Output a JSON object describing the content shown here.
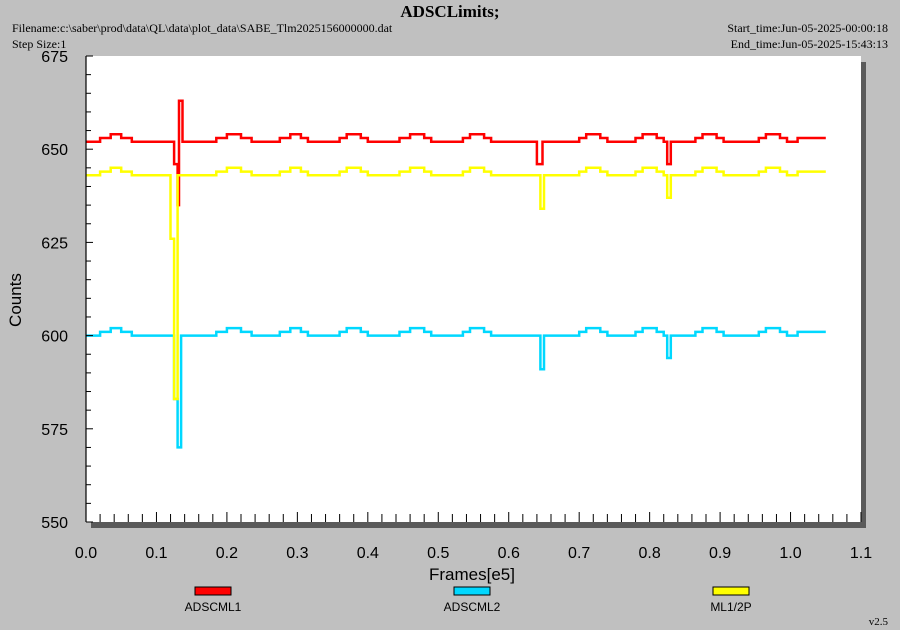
{
  "header": {
    "title": "ADSCLimits;",
    "filename": "Filename:c:\\saber\\prod\\data\\QL\\data\\plot_data\\SABE_Tlm2025156000000.dat",
    "step_size": "Step Size:1",
    "start_time": "Start_time:Jun-05-2025-00:00:18",
    "end_time": "End_time:Jun-05-2025-15:43:13"
  },
  "version": "v2.5",
  "chart_data": {
    "type": "line",
    "title": "ADSCLimits;",
    "xlabel": "Frames[e5]",
    "ylabel": "Counts",
    "xlim": [
      0.0,
      1.1
    ],
    "ylim": [
      550,
      675
    ],
    "x_ticks": [
      "0.0",
      "0.1",
      "0.2",
      "0.3",
      "0.4",
      "0.5",
      "0.6",
      "0.7",
      "0.8",
      "0.9",
      "1.0",
      "1.1"
    ],
    "y_ticks": [
      "550",
      "575",
      "600",
      "625",
      "650",
      "675"
    ],
    "grid": false,
    "legend_position": "bottom",
    "series": [
      {
        "name": "ADSCML1",
        "color": "#ff0000",
        "points": [
          [
            0.0,
            652
          ],
          [
            0.02,
            652
          ],
          [
            0.02,
            653
          ],
          [
            0.035,
            653
          ],
          [
            0.035,
            654
          ],
          [
            0.05,
            654
          ],
          [
            0.05,
            653
          ],
          [
            0.065,
            653
          ],
          [
            0.065,
            652
          ],
          [
            0.125,
            652
          ],
          [
            0.125,
            646
          ],
          [
            0.13,
            646
          ],
          [
            0.13,
            635
          ],
          [
            0.132,
            635
          ],
          [
            0.132,
            663
          ],
          [
            0.137,
            663
          ],
          [
            0.137,
            652
          ],
          [
            0.185,
            652
          ],
          [
            0.185,
            653
          ],
          [
            0.2,
            653
          ],
          [
            0.2,
            654
          ],
          [
            0.22,
            654
          ],
          [
            0.22,
            653
          ],
          [
            0.235,
            653
          ],
          [
            0.235,
            652
          ],
          [
            0.275,
            652
          ],
          [
            0.275,
            653
          ],
          [
            0.29,
            653
          ],
          [
            0.29,
            654
          ],
          [
            0.305,
            654
          ],
          [
            0.305,
            653
          ],
          [
            0.315,
            653
          ],
          [
            0.315,
            652
          ],
          [
            0.36,
            652
          ],
          [
            0.36,
            653
          ],
          [
            0.37,
            653
          ],
          [
            0.37,
            654
          ],
          [
            0.39,
            654
          ],
          [
            0.39,
            653
          ],
          [
            0.4,
            653
          ],
          [
            0.4,
            652
          ],
          [
            0.445,
            652
          ],
          [
            0.445,
            653
          ],
          [
            0.46,
            653
          ],
          [
            0.46,
            654
          ],
          [
            0.48,
            654
          ],
          [
            0.48,
            653
          ],
          [
            0.49,
            653
          ],
          [
            0.49,
            652
          ],
          [
            0.535,
            652
          ],
          [
            0.535,
            653
          ],
          [
            0.545,
            653
          ],
          [
            0.545,
            654
          ],
          [
            0.565,
            654
          ],
          [
            0.565,
            653
          ],
          [
            0.575,
            653
          ],
          [
            0.575,
            652
          ],
          [
            0.64,
            652
          ],
          [
            0.64,
            646
          ],
          [
            0.648,
            646
          ],
          [
            0.648,
            652
          ],
          [
            0.7,
            652
          ],
          [
            0.7,
            653
          ],
          [
            0.71,
            653
          ],
          [
            0.71,
            654
          ],
          [
            0.73,
            654
          ],
          [
            0.73,
            653
          ],
          [
            0.74,
            653
          ],
          [
            0.74,
            652
          ],
          [
            0.78,
            652
          ],
          [
            0.78,
            653
          ],
          [
            0.79,
            653
          ],
          [
            0.79,
            654
          ],
          [
            0.81,
            654
          ],
          [
            0.81,
            653
          ],
          [
            0.82,
            653
          ],
          [
            0.82,
            652
          ],
          [
            0.825,
            652
          ],
          [
            0.825,
            646
          ],
          [
            0.83,
            646
          ],
          [
            0.83,
            652
          ],
          [
            0.865,
            652
          ],
          [
            0.865,
            653
          ],
          [
            0.875,
            653
          ],
          [
            0.875,
            654
          ],
          [
            0.895,
            654
          ],
          [
            0.895,
            653
          ],
          [
            0.905,
            653
          ],
          [
            0.905,
            652
          ],
          [
            0.955,
            652
          ],
          [
            0.955,
            653
          ],
          [
            0.965,
            653
          ],
          [
            0.965,
            654
          ],
          [
            0.985,
            654
          ],
          [
            0.985,
            653
          ],
          [
            0.995,
            653
          ],
          [
            0.995,
            652
          ],
          [
            1.01,
            652
          ],
          [
            1.01,
            653
          ],
          [
            1.05,
            653
          ]
        ]
      },
      {
        "name": "ADSCML2",
        "color": "#00d8ff",
        "points": [
          [
            0.0,
            600
          ],
          [
            0.02,
            600
          ],
          [
            0.02,
            601
          ],
          [
            0.035,
            601
          ],
          [
            0.035,
            602
          ],
          [
            0.05,
            602
          ],
          [
            0.05,
            601
          ],
          [
            0.065,
            601
          ],
          [
            0.065,
            600
          ],
          [
            0.125,
            600
          ],
          [
            0.125,
            583
          ],
          [
            0.13,
            583
          ],
          [
            0.13,
            570
          ],
          [
            0.135,
            570
          ],
          [
            0.135,
            600
          ],
          [
            0.185,
            600
          ],
          [
            0.185,
            601
          ],
          [
            0.2,
            601
          ],
          [
            0.2,
            602
          ],
          [
            0.22,
            602
          ],
          [
            0.22,
            601
          ],
          [
            0.235,
            601
          ],
          [
            0.235,
            600
          ],
          [
            0.275,
            600
          ],
          [
            0.275,
            601
          ],
          [
            0.29,
            601
          ],
          [
            0.29,
            602
          ],
          [
            0.305,
            602
          ],
          [
            0.305,
            601
          ],
          [
            0.315,
            601
          ],
          [
            0.315,
            600
          ],
          [
            0.36,
            600
          ],
          [
            0.36,
            601
          ],
          [
            0.37,
            601
          ],
          [
            0.37,
            602
          ],
          [
            0.39,
            602
          ],
          [
            0.39,
            601
          ],
          [
            0.4,
            601
          ],
          [
            0.4,
            600
          ],
          [
            0.445,
            600
          ],
          [
            0.445,
            601
          ],
          [
            0.46,
            601
          ],
          [
            0.46,
            602
          ],
          [
            0.48,
            602
          ],
          [
            0.48,
            601
          ],
          [
            0.49,
            601
          ],
          [
            0.49,
            600
          ],
          [
            0.535,
            600
          ],
          [
            0.535,
            601
          ],
          [
            0.545,
            601
          ],
          [
            0.545,
            602
          ],
          [
            0.565,
            602
          ],
          [
            0.565,
            601
          ],
          [
            0.575,
            601
          ],
          [
            0.575,
            600
          ],
          [
            0.645,
            600
          ],
          [
            0.645,
            591
          ],
          [
            0.65,
            591
          ],
          [
            0.65,
            600
          ],
          [
            0.7,
            600
          ],
          [
            0.7,
            601
          ],
          [
            0.71,
            601
          ],
          [
            0.71,
            602
          ],
          [
            0.73,
            602
          ],
          [
            0.73,
            601
          ],
          [
            0.74,
            601
          ],
          [
            0.74,
            600
          ],
          [
            0.78,
            600
          ],
          [
            0.78,
            601
          ],
          [
            0.79,
            601
          ],
          [
            0.79,
            602
          ],
          [
            0.81,
            602
          ],
          [
            0.81,
            601
          ],
          [
            0.82,
            601
          ],
          [
            0.82,
            600
          ],
          [
            0.825,
            600
          ],
          [
            0.825,
            594
          ],
          [
            0.83,
            594
          ],
          [
            0.83,
            600
          ],
          [
            0.865,
            600
          ],
          [
            0.865,
            601
          ],
          [
            0.875,
            601
          ],
          [
            0.875,
            602
          ],
          [
            0.895,
            602
          ],
          [
            0.895,
            601
          ],
          [
            0.905,
            601
          ],
          [
            0.905,
            600
          ],
          [
            0.955,
            600
          ],
          [
            0.955,
            601
          ],
          [
            0.965,
            601
          ],
          [
            0.965,
            602
          ],
          [
            0.985,
            602
          ],
          [
            0.985,
            601
          ],
          [
            0.995,
            601
          ],
          [
            0.995,
            600
          ],
          [
            1.01,
            600
          ],
          [
            1.01,
            601
          ],
          [
            1.05,
            601
          ]
        ]
      },
      {
        "name": "ML1/2P",
        "color": "#ffff00",
        "points": [
          [
            0.0,
            643
          ],
          [
            0.02,
            643
          ],
          [
            0.02,
            644
          ],
          [
            0.035,
            644
          ],
          [
            0.035,
            645
          ],
          [
            0.05,
            645
          ],
          [
            0.05,
            644
          ],
          [
            0.065,
            644
          ],
          [
            0.065,
            643
          ],
          [
            0.12,
            643
          ],
          [
            0.12,
            626
          ],
          [
            0.125,
            626
          ],
          [
            0.125,
            583
          ],
          [
            0.13,
            583
          ],
          [
            0.13,
            643
          ],
          [
            0.135,
            643
          ],
          [
            0.185,
            643
          ],
          [
            0.185,
            644
          ],
          [
            0.2,
            644
          ],
          [
            0.2,
            645
          ],
          [
            0.22,
            645
          ],
          [
            0.22,
            644
          ],
          [
            0.235,
            644
          ],
          [
            0.235,
            643
          ],
          [
            0.275,
            643
          ],
          [
            0.275,
            644
          ],
          [
            0.29,
            644
          ],
          [
            0.29,
            645
          ],
          [
            0.305,
            645
          ],
          [
            0.305,
            644
          ],
          [
            0.315,
            644
          ],
          [
            0.315,
            643
          ],
          [
            0.36,
            643
          ],
          [
            0.36,
            644
          ],
          [
            0.37,
            644
          ],
          [
            0.37,
            645
          ],
          [
            0.39,
            645
          ],
          [
            0.39,
            644
          ],
          [
            0.4,
            644
          ],
          [
            0.4,
            643
          ],
          [
            0.445,
            643
          ],
          [
            0.445,
            644
          ],
          [
            0.46,
            644
          ],
          [
            0.46,
            645
          ],
          [
            0.48,
            645
          ],
          [
            0.48,
            644
          ],
          [
            0.49,
            644
          ],
          [
            0.49,
            643
          ],
          [
            0.535,
            643
          ],
          [
            0.535,
            644
          ],
          [
            0.545,
            644
          ],
          [
            0.545,
            645
          ],
          [
            0.565,
            645
          ],
          [
            0.565,
            644
          ],
          [
            0.575,
            644
          ],
          [
            0.575,
            643
          ],
          [
            0.645,
            643
          ],
          [
            0.645,
            634
          ],
          [
            0.65,
            634
          ],
          [
            0.65,
            643
          ],
          [
            0.7,
            643
          ],
          [
            0.7,
            644
          ],
          [
            0.71,
            644
          ],
          [
            0.71,
            645
          ],
          [
            0.73,
            645
          ],
          [
            0.73,
            644
          ],
          [
            0.74,
            644
          ],
          [
            0.74,
            643
          ],
          [
            0.78,
            643
          ],
          [
            0.78,
            644
          ],
          [
            0.79,
            644
          ],
          [
            0.79,
            645
          ],
          [
            0.81,
            645
          ],
          [
            0.81,
            644
          ],
          [
            0.82,
            644
          ],
          [
            0.82,
            643
          ],
          [
            0.825,
            643
          ],
          [
            0.825,
            637
          ],
          [
            0.83,
            637
          ],
          [
            0.83,
            643
          ],
          [
            0.865,
            643
          ],
          [
            0.865,
            644
          ],
          [
            0.875,
            644
          ],
          [
            0.875,
            645
          ],
          [
            0.895,
            645
          ],
          [
            0.895,
            644
          ],
          [
            0.905,
            644
          ],
          [
            0.905,
            643
          ],
          [
            0.955,
            643
          ],
          [
            0.955,
            644
          ],
          [
            0.965,
            644
          ],
          [
            0.965,
            645
          ],
          [
            0.985,
            645
          ],
          [
            0.985,
            644
          ],
          [
            0.995,
            644
          ],
          [
            0.995,
            643
          ],
          [
            1.01,
            643
          ],
          [
            1.01,
            644
          ],
          [
            1.05,
            644
          ]
        ]
      }
    ]
  }
}
